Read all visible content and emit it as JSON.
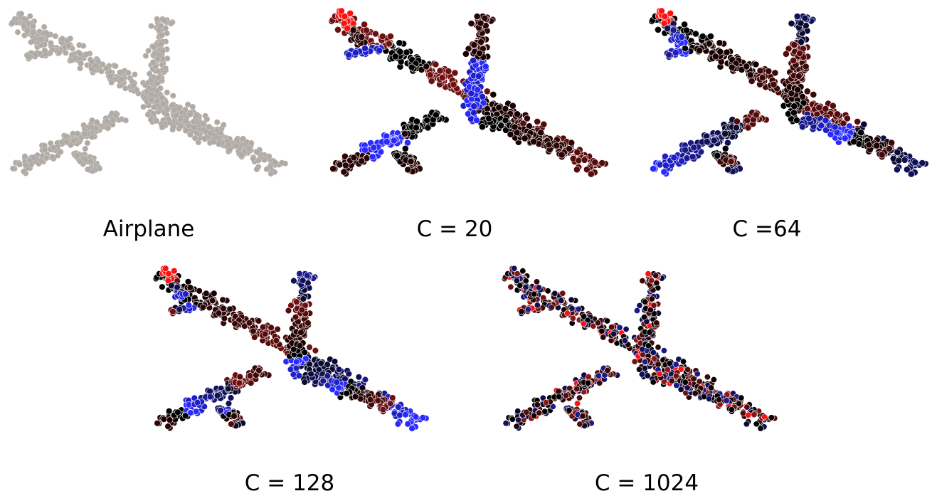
{
  "figure": {
    "panels": [
      {
        "id": "airplane",
        "caption": "Airplane",
        "coloring": "uniform",
        "color": "#b0aaa5"
      },
      {
        "id": "c20",
        "caption": "C = 20",
        "coloring": "segments",
        "num_clusters": 20
      },
      {
        "id": "c64",
        "caption": "C =64",
        "coloring": "segments",
        "num_clusters": 64
      },
      {
        "id": "c128",
        "caption": "C = 128",
        "coloring": "segments",
        "num_clusters": 128
      },
      {
        "id": "c1024",
        "caption": "C = 1024",
        "coloring": "segments",
        "num_clusters": 1024
      }
    ],
    "palette": [
      "#000000",
      "#1a0000",
      "#2a0505",
      "#3d0808",
      "#560b0b",
      "#6e1010",
      "#8a1515",
      "#0a0a33",
      "#10105a",
      "#1a1a8a",
      "#1f1fc8",
      "#2a2aff",
      "#ff1010"
    ]
  }
}
